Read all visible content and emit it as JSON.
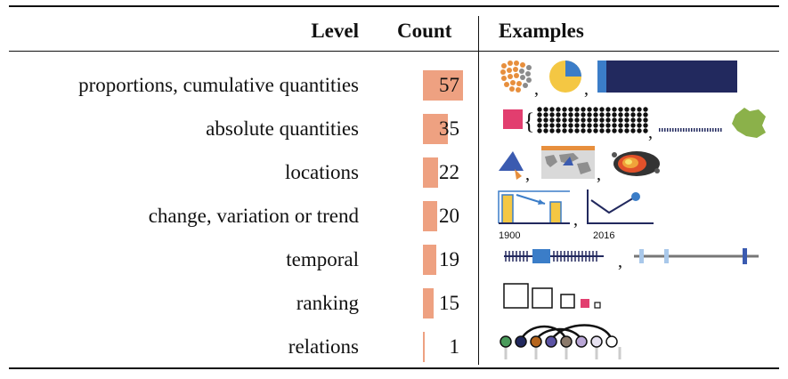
{
  "header": {
    "level": "Level",
    "count": "Count",
    "examples": "Examples"
  },
  "rows": [
    {
      "level": "proportions, cumulative quantities",
      "count": "57",
      "count_value": 57
    },
    {
      "level": "absolute quantities",
      "count": "35",
      "count_value": 35
    },
    {
      "level": "locations",
      "count": "22",
      "count_value": 22
    },
    {
      "level": "change, variation or trend",
      "count": "20",
      "count_value": 20
    },
    {
      "level": "temporal",
      "count": "19",
      "count_value": 19
    },
    {
      "level": "ranking",
      "count": "15",
      "count_value": 15
    },
    {
      "level": "relations",
      "count": "1",
      "count_value": 1
    }
  ],
  "examples": {
    "temporal_axis": {
      "start": "1900",
      "end": "2016"
    },
    "icons": [
      "dot-cluster-icon",
      "pie-icon",
      "horizontal-bar-icon",
      "square-icon",
      "dot-grid-icon",
      "dashed-line-icon",
      "france-map-icon",
      "location-pin-icon",
      "world-map-icon",
      "heatmap-icon",
      "bar-change-icon",
      "line-trend-icon",
      "timeline-icon",
      "timeline-markers-icon",
      "ranked-squares-icon",
      "node-link-icon"
    ]
  },
  "colors": {
    "count_bar": "#eea181",
    "navy": "#22295e",
    "blue": "#3b7dc8",
    "yellow": "#f4c743",
    "orange": "#e78f3d",
    "pink": "#e23e6f",
    "green": "#8bb14a"
  }
}
